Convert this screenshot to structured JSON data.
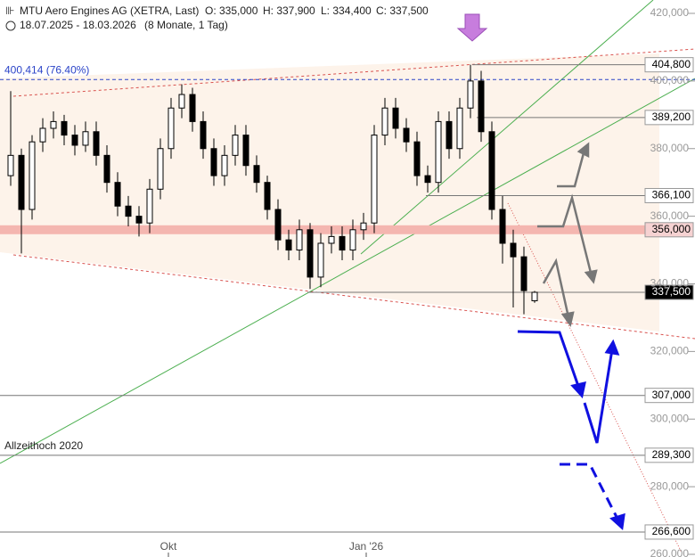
{
  "chart_data": {
    "type": "candlestick",
    "title": "MTU Aero Engines AG (XETRA, Last)",
    "stats": [
      "O: 335,000",
      "H: 337,900",
      "L: 334,400",
      "C: 337,500"
    ],
    "period": "18.07.2025 - 18.03.2026",
    "period_note": "(8 Monate, 1 Tag)",
    "open": [
      372000,
      378000,
      362000,
      382000,
      386000,
      388000,
      384000,
      381000,
      385000,
      378000,
      370000,
      363000,
      360000,
      358000,
      368000,
      380000,
      392000,
      396000,
      388000,
      380000,
      372000,
      378000,
      384000,
      375000,
      370000,
      362000,
      353000,
      350000,
      356000,
      342000,
      352000,
      354000,
      350000,
      356000,
      358000,
      384000,
      392000,
      386000,
      382000,
      372000,
      370000,
      388000,
      380000,
      392000,
      400000,
      385000,
      362000,
      352000,
      348000,
      335000
    ],
    "high": [
      397000,
      380000,
      384000,
      389000,
      391000,
      390000,
      387000,
      388000,
      388000,
      381000,
      373000,
      366000,
      363000,
      371000,
      383000,
      395000,
      399000,
      398000,
      391000,
      383000,
      381000,
      387000,
      387000,
      378000,
      372000,
      365000,
      356000,
      359000,
      358000,
      355000,
      357000,
      357000,
      359000,
      361000,
      387000,
      395000,
      395000,
      389000,
      385000,
      375000,
      391000,
      391000,
      395000,
      404800,
      403000,
      388000,
      366000,
      356000,
      351000,
      337900
    ],
    "low": [
      369000,
      349000,
      359000,
      379000,
      383000,
      381000,
      378000,
      379000,
      375000,
      367000,
      360000,
      357000,
      354000,
      355000,
      365000,
      377000,
      389000,
      385000,
      377000,
      369000,
      369000,
      375000,
      372000,
      367000,
      359000,
      350000,
      347000,
      347000,
      338500,
      339000,
      349000,
      347000,
      347000,
      353000,
      355000,
      381000,
      383000,
      379000,
      369000,
      367000,
      367000,
      377000,
      377000,
      389000,
      382000,
      359000,
      346000,
      333000,
      331000,
      334400
    ],
    "close": [
      378000,
      362000,
      382000,
      386000,
      388000,
      384000,
      381000,
      385000,
      378000,
      370000,
      363000,
      360000,
      358000,
      368000,
      380000,
      392000,
      396000,
      388000,
      380000,
      372000,
      378000,
      384000,
      375000,
      370000,
      362000,
      353000,
      350000,
      356000,
      342000,
      352000,
      354000,
      350000,
      356000,
      358000,
      384000,
      392000,
      386000,
      382000,
      372000,
      370000,
      388000,
      380000,
      392000,
      400000,
      385000,
      362000,
      352000,
      348000,
      338000,
      337500
    ],
    "xlim": [
      -1,
      64
    ],
    "xticks": [
      {
        "value": 14.75,
        "label": "Okt"
      },
      {
        "value": 33.25,
        "label": "Jan '26"
      }
    ],
    "ylim": [
      260000,
      420000
    ],
    "yticks": [
      {
        "value": 260000,
        "label": "260,000"
      },
      {
        "value": 280000,
        "label": "280,000"
      },
      {
        "value": 300000,
        "label": "300,000"
      },
      {
        "value": 320000,
        "label": "320,000"
      },
      {
        "value": 340000,
        "label": "340,000"
      },
      {
        "value": 360000,
        "label": "360,000"
      },
      {
        "value": 380000,
        "label": "380,000"
      },
      {
        "value": 400000,
        "label": "400,000"
      },
      {
        "value": 420000,
        "label": "420,000"
      }
    ],
    "levels": [
      {
        "value": 404800,
        "label": "404,800"
      },
      {
        "value": 389200,
        "label": "389,200"
      },
      {
        "value": 366100,
        "label": "366,100"
      },
      {
        "value": 356000,
        "label": "356,000"
      },
      {
        "value": 337500,
        "label": "337,500"
      },
      {
        "value": 307000,
        "label": "307,000"
      },
      {
        "value": 289300,
        "label": "289,300"
      },
      {
        "value": 266600,
        "label": "266,600"
      }
    ],
    "fib_level": {
      "value": 400414,
      "label": "400,414 (76.40%)"
    },
    "annotation": "Allzeithoch 2020"
  }
}
